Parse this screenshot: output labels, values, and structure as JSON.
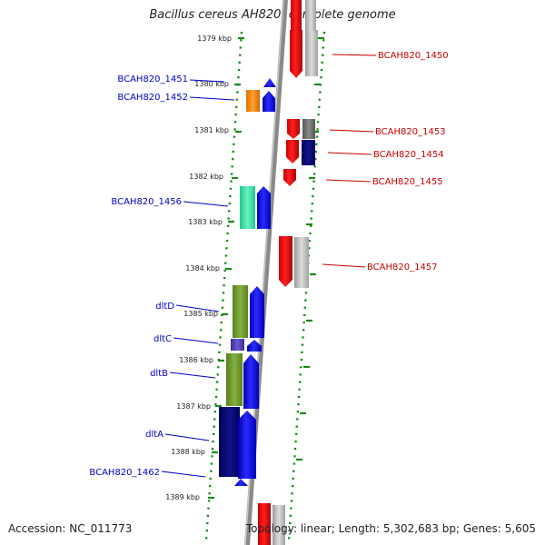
{
  "title": "Bacillus cereus AH820, complete genome",
  "footer": {
    "accession": "Accession: NC_011773",
    "topology": "Topology: linear; Length: 5,302,683 bp; Genes: 5,605"
  },
  "scale_labels": [
    "1379 kbp",
    "1380 kbp",
    "1381 kbp",
    "1382 kbp",
    "1383 kbp",
    "1384 kbp",
    "1385 kbp",
    "1386 kbp",
    "1387 kbp",
    "1388 kbp",
    "1389 kbp"
  ],
  "genes_left": [
    "BCAH820_1451",
    "BCAH820_1452",
    "BCAH820_1456",
    "dltD",
    "dltC",
    "dltB",
    "dltA",
    "BCAH820_1462"
  ],
  "genes_right": [
    "BCAH820_1450",
    "BCAH820_1453",
    "BCAH820_1454",
    "BCAH820_1455",
    "BCAH820_1457"
  ],
  "colors": {
    "label_left": "#0000cc",
    "label_right": "#cc0000",
    "scale_dots": "#1a8a1a",
    "genome_line": "#888888"
  }
}
